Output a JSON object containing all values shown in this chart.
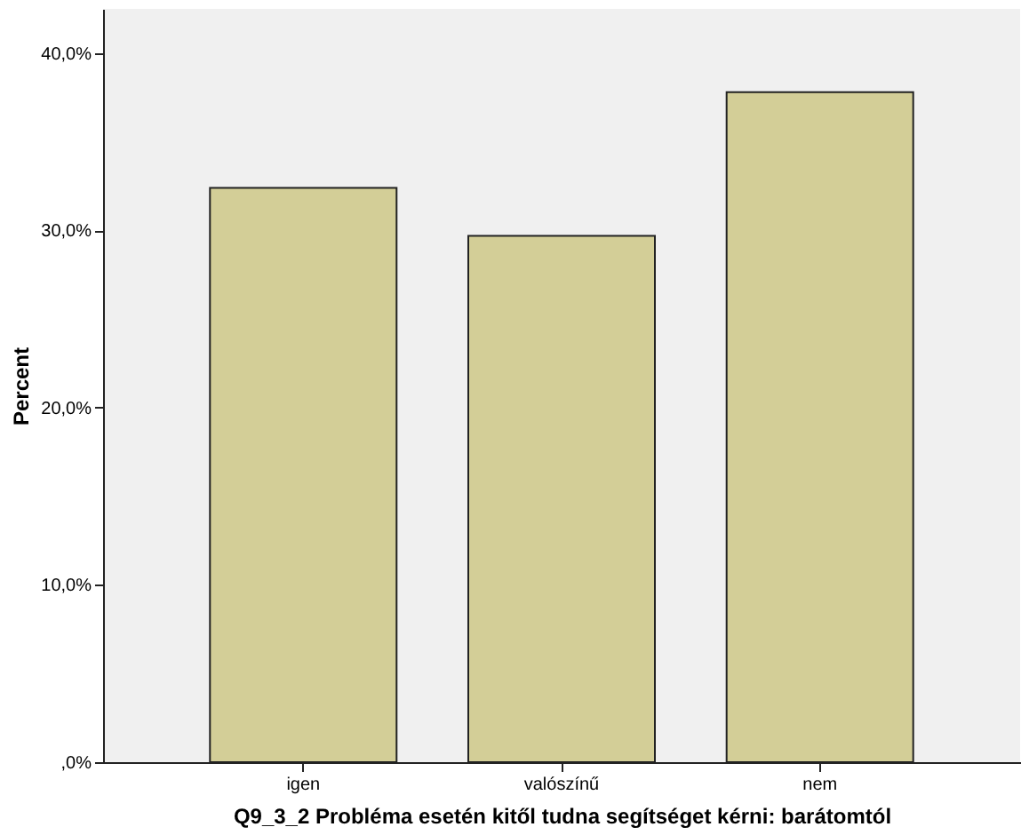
{
  "chart_data": {
    "type": "bar",
    "xlabel": "Q9_3_2 Probléma esetén kitől tudna segítséget kérni: barátomtól",
    "ylabel": "Percent",
    "categories": [
      "igen",
      "valószínű",
      "nem"
    ],
    "values": [
      32.4,
      29.7,
      37.8
    ],
    "color": "#d3ce97",
    "ylim": [
      0,
      42.5
    ],
    "yticks": [
      {
        "value": 0,
        "label": ",0%"
      },
      {
        "value": 10,
        "label": "10,0%"
      },
      {
        "value": 20,
        "label": "20,0%"
      },
      {
        "value": 30,
        "label": "30,0%"
      },
      {
        "value": 40,
        "label": "40,0%"
      }
    ],
    "grid": false
  }
}
